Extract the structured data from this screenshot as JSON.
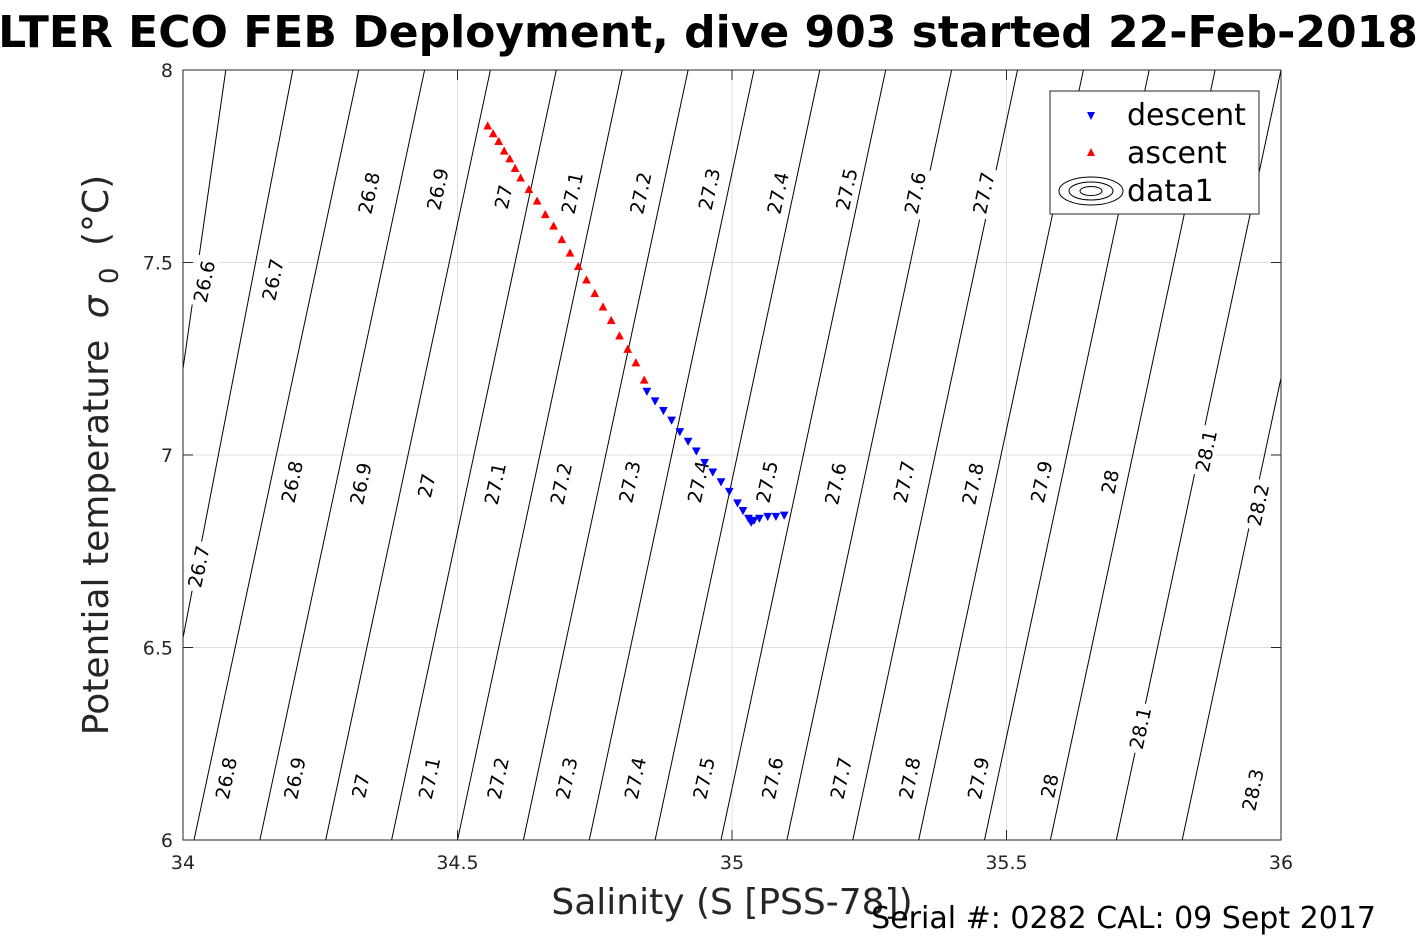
{
  "chart_data": {
    "type": "scatter",
    "title": "LTER ECO FEB Deployment, dive 903 started 22-Feb-2018",
    "xlabel": "Salinity (S [PSS-78])",
    "ylabel": "Potential temperature",
    "ylabel_sigma": "σ",
    "ylabel_sub": "0",
    "ylabel_unit": "(°C)",
    "xlim": [
      34,
      36
    ],
    "ylim": [
      6,
      8
    ],
    "xticks": [
      {
        "value": 34,
        "label": "34"
      },
      {
        "value": 34.5,
        "label": "34.5"
      },
      {
        "value": 35,
        "label": "35"
      },
      {
        "value": 35.5,
        "label": "35.5"
      },
      {
        "value": 36,
        "label": "36"
      }
    ],
    "yticks": [
      {
        "value": 6,
        "label": "6"
      },
      {
        "value": 6.5,
        "label": "6.5"
      },
      {
        "value": 7,
        "label": "7"
      },
      {
        "value": 7.5,
        "label": "7.5"
      },
      {
        "value": 8,
        "label": "8"
      }
    ],
    "grid": true,
    "legend_position": "top-right",
    "legend": [
      {
        "label": "descent",
        "marker": "triangle-down",
        "color": "#0000ff"
      },
      {
        "label": "ascent",
        "marker": "triangle-up",
        "color": "#ff0000"
      },
      {
        "label": "data1",
        "marker": "contour",
        "color": "#000000"
      }
    ],
    "series": [
      {
        "name": "descent",
        "color": "#0000ff",
        "marker": "triangle-down",
        "points": [
          {
            "x": 34.845,
            "y": 7.165
          },
          {
            "x": 34.86,
            "y": 7.14
          },
          {
            "x": 34.875,
            "y": 7.115
          },
          {
            "x": 34.89,
            "y": 7.09
          },
          {
            "x": 34.905,
            "y": 7.06
          },
          {
            "x": 34.92,
            "y": 7.035
          },
          {
            "x": 34.935,
            "y": 7.01
          },
          {
            "x": 34.95,
            "y": 6.98
          },
          {
            "x": 34.965,
            "y": 6.955
          },
          {
            "x": 34.98,
            "y": 6.93
          },
          {
            "x": 34.995,
            "y": 6.905
          },
          {
            "x": 35.01,
            "y": 6.875
          },
          {
            "x": 35.02,
            "y": 6.855
          },
          {
            "x": 35.03,
            "y": 6.835
          },
          {
            "x": 35.035,
            "y": 6.825
          },
          {
            "x": 35.04,
            "y": 6.83
          },
          {
            "x": 35.05,
            "y": 6.835
          },
          {
            "x": 35.065,
            "y": 6.84
          },
          {
            "x": 35.08,
            "y": 6.84
          },
          {
            "x": 35.095,
            "y": 6.843
          }
        ]
      },
      {
        "name": "ascent",
        "color": "#ff0000",
        "marker": "triangle-up",
        "points": [
          {
            "x": 34.555,
            "y": 7.855
          },
          {
            "x": 34.565,
            "y": 7.835
          },
          {
            "x": 34.575,
            "y": 7.815
          },
          {
            "x": 34.585,
            "y": 7.79
          },
          {
            "x": 34.595,
            "y": 7.77
          },
          {
            "x": 34.605,
            "y": 7.745
          },
          {
            "x": 34.615,
            "y": 7.72
          },
          {
            "x": 34.63,
            "y": 7.69
          },
          {
            "x": 34.645,
            "y": 7.66
          },
          {
            "x": 34.66,
            "y": 7.625
          },
          {
            "x": 34.675,
            "y": 7.595
          },
          {
            "x": 34.69,
            "y": 7.56
          },
          {
            "x": 34.705,
            "y": 7.525
          },
          {
            "x": 34.72,
            "y": 7.49
          },
          {
            "x": 34.735,
            "y": 7.455
          },
          {
            "x": 34.75,
            "y": 7.42
          },
          {
            "x": 34.765,
            "y": 7.385
          },
          {
            "x": 34.78,
            "y": 7.35
          },
          {
            "x": 34.795,
            "y": 7.31
          },
          {
            "x": 34.81,
            "y": 7.275
          },
          {
            "x": 34.825,
            "y": 7.24
          },
          {
            "x": 34.84,
            "y": 7.195
          }
        ]
      }
    ],
    "contours": [
      {
        "value": 26.6,
        "label": "26.6",
        "points": [
          [
            34.0,
            7.224
          ],
          [
            34.078,
            8.0
          ]
        ]
      },
      {
        "value": 26.7,
        "label": "26.7",
        "points": [
          [
            34.0,
            6.525
          ],
          [
            34.2,
            8.0
          ]
        ]
      },
      {
        "value": 26.8,
        "label": "26.8",
        "points": [
          [
            34.02,
            6.0
          ],
          [
            34.32,
            8.0
          ]
        ]
      },
      {
        "value": 26.9,
        "label": "26.9",
        "points": [
          [
            34.14,
            6.0
          ],
          [
            34.44,
            8.0
          ]
        ]
      },
      {
        "value": 27.0,
        "label": "27",
        "points": [
          [
            34.26,
            6.0
          ],
          [
            34.56,
            8.0
          ]
        ]
      },
      {
        "value": 27.1,
        "label": "27.1",
        "points": [
          [
            34.38,
            6.0
          ],
          [
            34.68,
            8.0
          ]
        ]
      },
      {
        "value": 27.2,
        "label": "27.2",
        "points": [
          [
            34.5,
            6.0
          ],
          [
            34.8,
            8.0
          ]
        ]
      },
      {
        "value": 27.3,
        "label": "27.3",
        "points": [
          [
            34.62,
            6.0
          ],
          [
            34.92,
            8.0
          ]
        ]
      },
      {
        "value": 27.4,
        "label": "27.4",
        "points": [
          [
            34.74,
            6.0
          ],
          [
            35.04,
            8.0
          ]
        ]
      },
      {
        "value": 27.5,
        "label": "27.5",
        "points": [
          [
            34.86,
            6.0
          ],
          [
            35.16,
            8.0
          ]
        ]
      },
      {
        "value": 27.6,
        "label": "27.6",
        "points": [
          [
            34.98,
            6.0
          ],
          [
            35.28,
            8.0
          ]
        ]
      },
      {
        "value": 27.7,
        "label": "27.7",
        "points": [
          [
            35.1,
            6.0
          ],
          [
            35.4,
            8.0
          ]
        ]
      },
      {
        "value": 27.8,
        "label": "27.8",
        "points": [
          [
            35.22,
            6.0
          ],
          [
            35.52,
            8.0
          ]
        ]
      },
      {
        "value": 27.9,
        "label": "27.9",
        "points": [
          [
            35.34,
            6.0
          ],
          [
            35.64,
            8.0
          ]
        ]
      },
      {
        "value": 28.0,
        "label": "28",
        "points": [
          [
            35.46,
            6.0
          ],
          [
            35.76,
            8.0
          ]
        ]
      },
      {
        "value": 28.1,
        "label": "28.1",
        "points": [
          [
            35.58,
            6.0
          ],
          [
            35.88,
            8.0
          ]
        ]
      },
      {
        "value": 28.2,
        "label": "28.2",
        "points": [
          [
            35.7,
            6.0
          ],
          [
            36.0,
            8.0
          ]
        ]
      },
      {
        "value": 28.3,
        "label": "28.3",
        "points": [
          [
            35.82,
            6.0
          ],
          [
            36.0,
            7.2
          ]
        ]
      }
    ],
    "contour_labels": [
      {
        "label": "26.6",
        "x": 34.04,
        "y": 7.45
      },
      {
        "label": "26.7",
        "x": 34.165,
        "y": 7.455
      },
      {
        "label": "26.8",
        "x": 34.34,
        "y": 7.68
      },
      {
        "label": "26.9",
        "x": 34.465,
        "y": 7.69
      },
      {
        "label": "27",
        "x": 34.585,
        "y": 7.67
      },
      {
        "label": "27.1",
        "x": 34.71,
        "y": 7.68
      },
      {
        "label": "27.2",
        "x": 34.835,
        "y": 7.68
      },
      {
        "label": "27.3",
        "x": 34.96,
        "y": 7.69
      },
      {
        "label": "27.4",
        "x": 35.085,
        "y": 7.68
      },
      {
        "label": "27.5",
        "x": 35.21,
        "y": 7.69
      },
      {
        "label": "27.6",
        "x": 35.335,
        "y": 7.68
      },
      {
        "label": "27.7",
        "x": 35.46,
        "y": 7.68
      },
      {
        "label": "26.7",
        "x": 34.03,
        "y": 6.71
      },
      {
        "label": "26.8",
        "x": 34.2,
        "y": 6.93
      },
      {
        "label": "26.9",
        "x": 34.325,
        "y": 6.925
      },
      {
        "label": "27",
        "x": 34.445,
        "y": 6.92
      },
      {
        "label": "27.1",
        "x": 34.57,
        "y": 6.925
      },
      {
        "label": "27.2",
        "x": 34.69,
        "y": 6.925
      },
      {
        "label": "27.3",
        "x": 34.815,
        "y": 6.93
      },
      {
        "label": "27.4",
        "x": 34.94,
        "y": 6.93
      },
      {
        "label": "27.5",
        "x": 35.065,
        "y": 6.93
      },
      {
        "label": "27.6",
        "x": 35.19,
        "y": 6.925
      },
      {
        "label": "27.7",
        "x": 35.315,
        "y": 6.93
      },
      {
        "label": "27.8",
        "x": 35.44,
        "y": 6.925
      },
      {
        "label": "27.9",
        "x": 35.565,
        "y": 6.93
      },
      {
        "label": "28",
        "x": 35.69,
        "y": 6.93
      },
      {
        "label": "28.1",
        "x": 35.865,
        "y": 7.01
      },
      {
        "label": "28.2",
        "x": 35.96,
        "y": 6.87
      },
      {
        "label": "26.8",
        "x": 34.08,
        "y": 6.16
      },
      {
        "label": "26.9",
        "x": 34.205,
        "y": 6.16
      },
      {
        "label": "27",
        "x": 34.325,
        "y": 6.14
      },
      {
        "label": "27.1",
        "x": 34.45,
        "y": 6.16
      },
      {
        "label": "27.2",
        "x": 34.575,
        "y": 6.16
      },
      {
        "label": "27.3",
        "x": 34.7,
        "y": 6.16
      },
      {
        "label": "27.4",
        "x": 34.825,
        "y": 6.16
      },
      {
        "label": "27.5",
        "x": 34.95,
        "y": 6.16
      },
      {
        "label": "27.6",
        "x": 35.075,
        "y": 6.16
      },
      {
        "label": "27.7",
        "x": 35.2,
        "y": 6.16
      },
      {
        "label": "27.8",
        "x": 35.325,
        "y": 6.16
      },
      {
        "label": "27.9",
        "x": 35.45,
        "y": 6.16
      },
      {
        "label": "28",
        "x": 35.58,
        "y": 6.14
      },
      {
        "label": "28.1",
        "x": 35.745,
        "y": 6.29
      },
      {
        "label": "28.3",
        "x": 35.95,
        "y": 6.13
      }
    ]
  },
  "footer": {
    "serial_text": "Serial #: 0282  CAL: 09 Sept 2017"
  }
}
